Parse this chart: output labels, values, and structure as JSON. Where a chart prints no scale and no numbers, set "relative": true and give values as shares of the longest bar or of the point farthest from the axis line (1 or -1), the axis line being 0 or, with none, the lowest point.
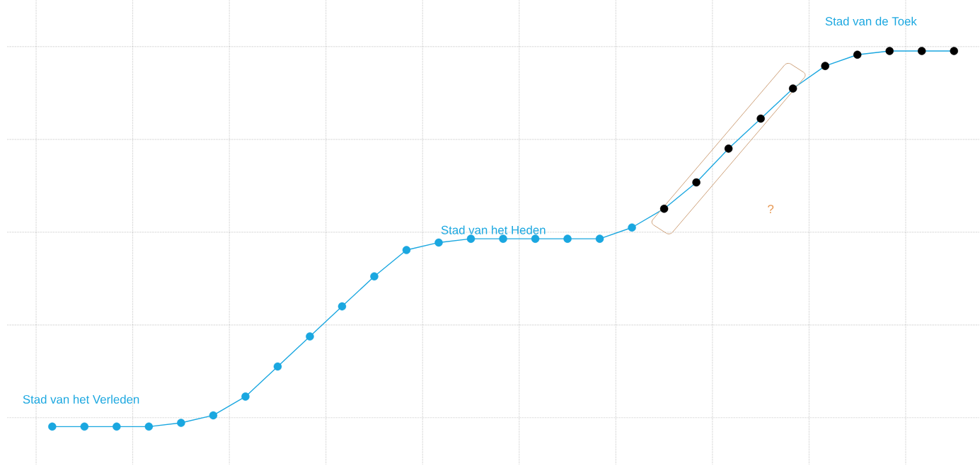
{
  "chart_data": {
    "type": "line",
    "relative": true,
    "grid": true,
    "marker": "circle",
    "categories": [
      null,
      null,
      null,
      null,
      null,
      null,
      null,
      null,
      null,
      null,
      null,
      null,
      null,
      null,
      null,
      null,
      null,
      null,
      null,
      null,
      null,
      null,
      null,
      null,
      null,
      null,
      null,
      null,
      null
    ],
    "series": [
      {
        "color": "#1aa7e0",
        "values": [
          0,
          0,
          0,
          0,
          0.01,
          0.03,
          0.08,
          0.16,
          0.24,
          0.32,
          0.4,
          0.47,
          0.49,
          0.5,
          0.5,
          0.5,
          0.5,
          0.5,
          0.53,
          0.58,
          0.65,
          0.74,
          0.82,
          0.9,
          0.96,
          0.99,
          1,
          1,
          1
        ],
        "colors": [
          "#1aa7e0",
          "#1aa7e0",
          "#1aa7e0",
          "#1aa7e0",
          "#1aa7e0",
          "#1aa7e0",
          "#1aa7e0",
          "#1aa7e0",
          "#1aa7e0",
          "#1aa7e0",
          "#1aa7e0",
          "#1aa7e0",
          "#1aa7e0",
          "#1aa7e0",
          "#1aa7e0",
          "#1aa7e0",
          "#1aa7e0",
          "#1aa7e0",
          "#1aa7e0",
          "#000000",
          "#000000",
          "#000000",
          "#000000",
          "#000000",
          "#000000",
          "#000000",
          "#000000",
          "#000000",
          "#000000"
        ]
      }
    ],
    "annotations": [
      "Stad van het Verleden",
      "Stad van het Heden",
      "Stad van de Toek",
      "?"
    ]
  }
}
